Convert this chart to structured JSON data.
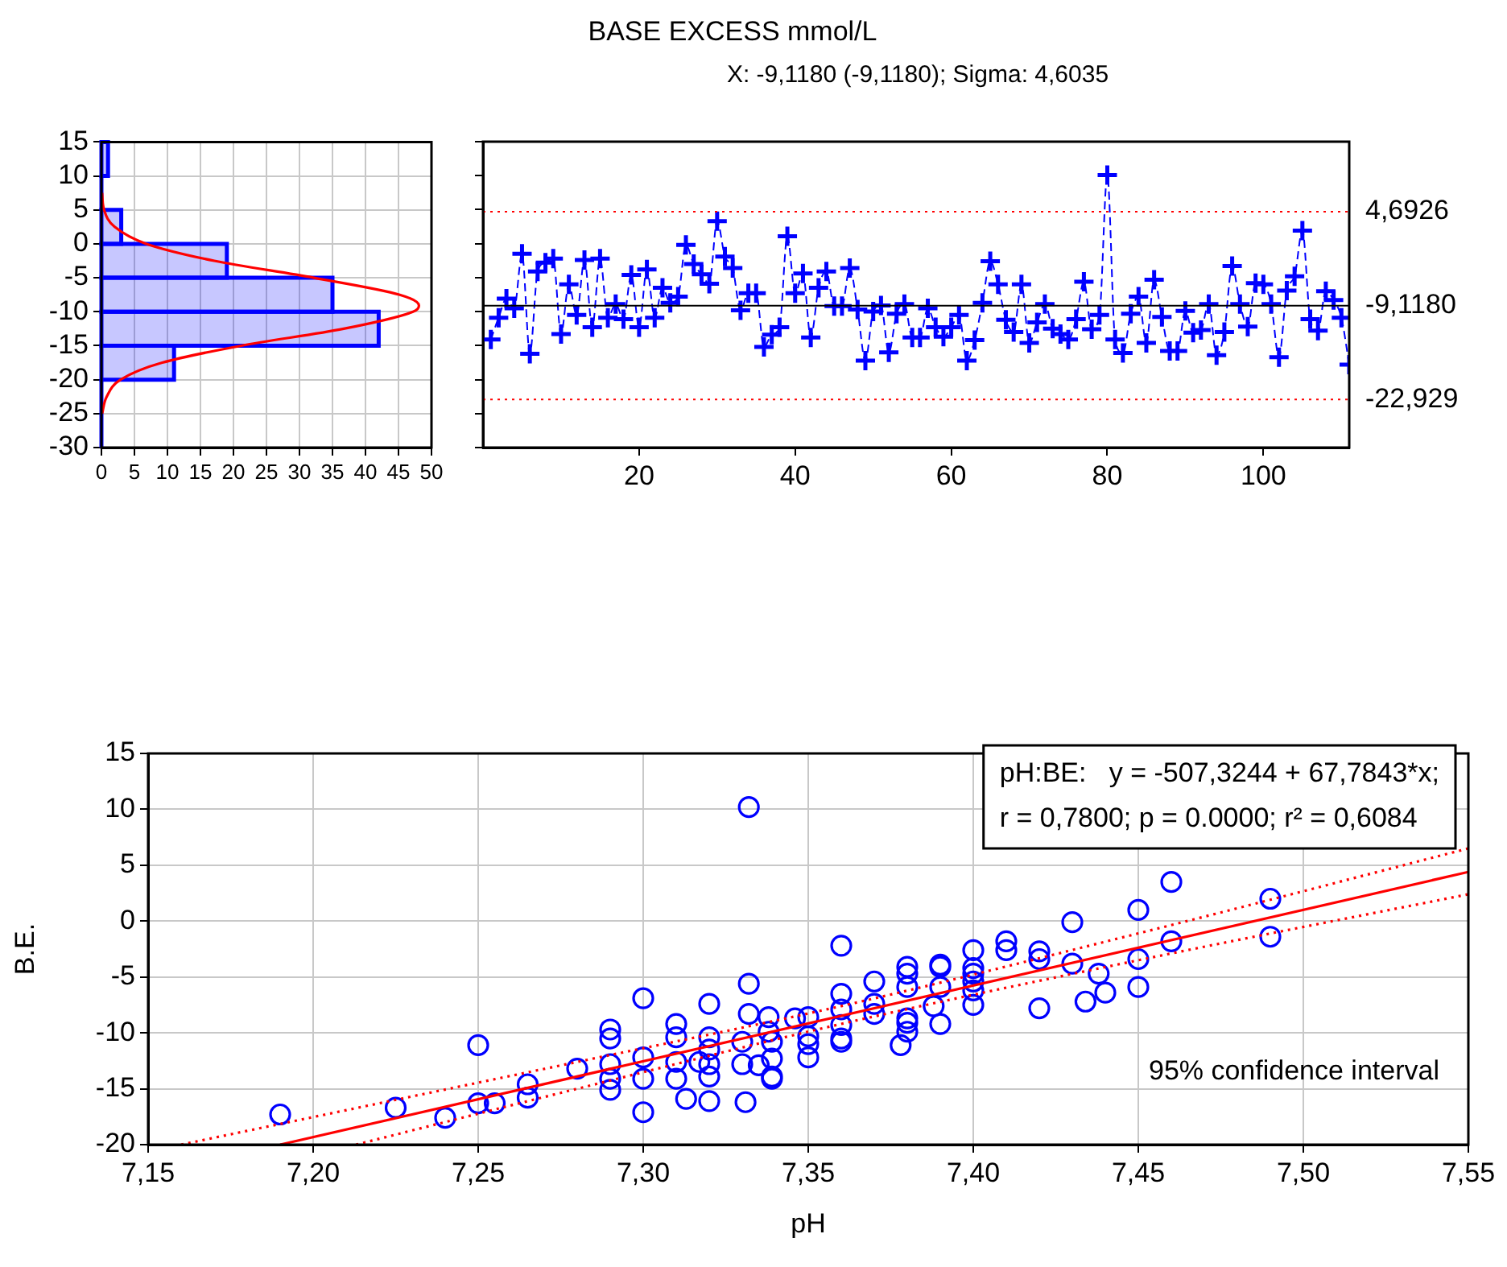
{
  "chart_data": [
    {
      "type": "histogram",
      "orientation": "horizontal",
      "bins": [
        -30,
        -25,
        -20,
        -15,
        -10,
        -5,
        0,
        5,
        10,
        15
      ],
      "values": [
        0,
        0,
        11,
        42,
        35,
        19,
        3,
        0,
        1
      ],
      "color": "#0000ff",
      "xlim": [
        0,
        50
      ],
      "xticks": [
        0,
        5,
        10,
        15,
        20,
        25,
        30,
        35,
        40,
        45,
        50
      ],
      "ylim": [
        -30,
        15
      ],
      "yticks": [
        -30,
        -25,
        -20,
        -15,
        -10,
        -5,
        0,
        5,
        10,
        15
      ],
      "grid": true,
      "series": [
        {
          "type": "line",
          "color": "#ff0000",
          "x": [
            -25,
            -22.5,
            -20,
            -17.5,
            -15,
            -12.5,
            -10,
            -9.1,
            -7.5,
            -5,
            -2.5,
            0,
            2.5,
            5,
            7.5
          ],
          "values": [
            0.1,
            0.8,
            2.9,
            9.2,
            21.2,
            36.7,
            47.2,
            48.1,
            45.2,
            32.2,
            17.1,
            6.8,
            2,
            0.4,
            0.1
          ]
        }
      ]
    },
    {
      "type": "line",
      "title": "BASE EXCESS mmol/L",
      "subtitle": "X: -9,1180 (-9,1180); Sigma: 4,6035",
      "color": "#0000ff",
      "marker": "cross",
      "line_style": "dashed",
      "xlim": [
        0,
        111
      ],
      "xticks": [
        20,
        40,
        60,
        80,
        100
      ],
      "ylim": [
        -30,
        15
      ],
      "yticks": [
        -30,
        -25,
        -20,
        -15,
        -10,
        -5,
        0,
        5,
        10,
        15
      ],
      "tick_labels": "x",
      "x": [
        1,
        2,
        3,
        4,
        5,
        6,
        7,
        8,
        9,
        10,
        11,
        12,
        13,
        14,
        15,
        16,
        17,
        18,
        19,
        20,
        21,
        22,
        23,
        24,
        25,
        26,
        27,
        28,
        29,
        30,
        31,
        32,
        33,
        34,
        35,
        36,
        37,
        38,
        39,
        40,
        41,
        42,
        43,
        44,
        45,
        46,
        47,
        48,
        49,
        50,
        51,
        52,
        53,
        54,
        55,
        56,
        57,
        58,
        59,
        60,
        61,
        62,
        63,
        64,
        65,
        66,
        67,
        68,
        69,
        70,
        71,
        72,
        73,
        74,
        75,
        76,
        77,
        78,
        79,
        80,
        81,
        82,
        83,
        84,
        85,
        86,
        87,
        88,
        89,
        90,
        91,
        92,
        93,
        94,
        95,
        96,
        97,
        98,
        99,
        100,
        101,
        102,
        103,
        104,
        105,
        106,
        107,
        108,
        109,
        110,
        111
      ],
      "values": [
        -14.1,
        -10.9,
        -8.1,
        -9.5,
        -1.5,
        -16.2,
        -4.1,
        -2.8,
        -2.2,
        -13.3,
        -6.0,
        -10.5,
        -2.4,
        -12.3,
        -2.2,
        -10.9,
        -8.9,
        -11.1,
        -4.6,
        -12.3,
        -3.8,
        -10.9,
        -6.5,
        -8.7,
        -7.8,
        -0.2,
        -3.0,
        -4.5,
        -5.9,
        3.3,
        -1.9,
        -3.6,
        -9.8,
        -7.3,
        -7.3,
        -15.2,
        -13.4,
        -12.3,
        1.1,
        -7.3,
        -4.4,
        -13.8,
        -6.5,
        -4.1,
        -9.2,
        -9.2,
        -3.6,
        -9.7,
        -17.2,
        -10.0,
        -9.1,
        -16.0,
        -10.3,
        -8.9,
        -13.8,
        -13.8,
        -9.5,
        -12.3,
        -13.7,
        -12.3,
        -10.5,
        -17.2,
        -14.2,
        -8.7,
        -2.6,
        -6.0,
        -11.2,
        -13.0,
        -6.0,
        -14.6,
        -11.6,
        -8.9,
        -12.5,
        -13.3,
        -14.1,
        -11.1,
        -5.6,
        -12.6,
        -10.5,
        10.1,
        -14.1,
        -16.1,
        -10.3,
        -7.8,
        -14.6,
        -5.3,
        -10.8,
        -15.8,
        -15.8,
        -9.9,
        -13.1,
        -12.7,
        -8.9,
        -16.4,
        -13.0,
        -3.3,
        -8.9,
        -12.2,
        -5.8,
        -6.0,
        -8.9,
        -16.7,
        -6.9,
        -4.8,
        1.9,
        -11.1,
        -12.8,
        -7.0,
        -8.3,
        -10.9,
        -17.8
      ],
      "ref_lines": [
        {
          "axis": "y",
          "value": 4.6926,
          "label": "4,6926",
          "color": "#ff0000",
          "line_style": "dotted"
        },
        {
          "axis": "y",
          "value": -9.118,
          "label": "-9,1180",
          "color": "#000000",
          "line_style": "solid"
        },
        {
          "axis": "y",
          "value": -22.929,
          "label": "-22,929",
          "color": "#ff0000",
          "line_style": "dotted"
        }
      ]
    },
    {
      "type": "scatter",
      "xlabel": "pH",
      "ylabel": "B.E.",
      "marker": "circle",
      "grid": true,
      "xlim": [
        7.15,
        7.55
      ],
      "xticks": [
        {
          "value": 7.15,
          "label": "7,15"
        },
        {
          "value": 7.2,
          "label": "7,20"
        },
        {
          "value": 7.25,
          "label": "7,25"
        },
        {
          "value": 7.3,
          "label": "7,30"
        },
        {
          "value": 7.35,
          "label": "7,35"
        },
        {
          "value": 7.4,
          "label": "7,40"
        },
        {
          "value": 7.45,
          "label": "7,45"
        },
        {
          "value": 7.5,
          "label": "7,50"
        },
        {
          "value": 7.55,
          "label": "7,55"
        }
      ],
      "ylim": [
        -20,
        15
      ],
      "yticks": [
        -20,
        -15,
        -10,
        -5,
        0,
        5,
        10,
        15
      ],
      "annotations": [
        "pH:BE:   y = -507,3244 + 67,7843*x;",
        "r = 0,7800; p = 0.0000; r² = 0,6084",
        "95% confidence interval"
      ],
      "series": [
        {
          "type": "scatter",
          "color": "#0000ff",
          "x": [
            7.19,
            7.225,
            7.24,
            7.25,
            7.25,
            7.255,
            7.265,
            7.265,
            7.28,
            7.29,
            7.29,
            7.29,
            7.29,
            7.29,
            7.3,
            7.3,
            7.3,
            7.3,
            7.31,
            7.31,
            7.31,
            7.31,
            7.313,
            7.317,
            7.32,
            7.32,
            7.32,
            7.32,
            7.32,
            7.32,
            7.33,
            7.33,
            7.331,
            7.332,
            7.332,
            7.332,
            7.335,
            7.338,
            7.338,
            7.339,
            7.339,
            7.339,
            7.339,
            7.346,
            7.35,
            7.35,
            7.35,
            7.35,
            7.36,
            7.36,
            7.36,
            7.36,
            7.36,
            7.36,
            7.37,
            7.37,
            7.37,
            7.378,
            7.38,
            7.38,
            7.38,
            7.38,
            7.38,
            7.38,
            7.388,
            7.39,
            7.39,
            7.39,
            7.39,
            7.4,
            7.4,
            7.4,
            7.4,
            7.4,
            7.4,
            7.41,
            7.41,
            7.42,
            7.42,
            7.42,
            7.43,
            7.43,
            7.434,
            7.438,
            7.44,
            7.45,
            7.45,
            7.45,
            7.46,
            7.46,
            7.49,
            7.49
          ],
          "values": [
            -17.3,
            -16.7,
            -17.6,
            -16.3,
            -11.1,
            -16.3,
            -14.6,
            -15.8,
            -13.2,
            -9.7,
            -10.5,
            -12.8,
            -14.1,
            -15.1,
            -6.9,
            -12.2,
            -14.1,
            -17.1,
            -9.2,
            -10.4,
            -12.6,
            -14.1,
            -15.9,
            -12.6,
            -7.4,
            -10.4,
            -11.5,
            -12.8,
            -13.9,
            -16.1,
            -10.8,
            -12.8,
            -16.2,
            10.2,
            -5.6,
            -8.3,
            -12.9,
            -8.6,
            -9.9,
            -10.8,
            -12.3,
            -13.9,
            -14.1,
            -8.7,
            -8.6,
            -10.3,
            -11.0,
            -12.2,
            -2.2,
            -6.5,
            -7.9,
            -9.3,
            -10.5,
            -10.8,
            -5.4,
            -7.4,
            -8.3,
            -11.1,
            -4.1,
            -4.7,
            -5.9,
            -8.7,
            -9.1,
            -9.9,
            -7.6,
            -3.9,
            -4.1,
            -5.9,
            -9.2,
            -2.6,
            -4.2,
            -4.7,
            -5.4,
            -6.2,
            -7.5,
            -1.8,
            -2.6,
            -2.7,
            -3.4,
            -7.8,
            -0.1,
            -3.8,
            -7.2,
            -4.7,
            -6.4,
            1.0,
            -3.4,
            -5.9,
            3.5,
            -1.8,
            2.0,
            -1.4
          ]
        },
        {
          "type": "line",
          "color": "#ff0000",
          "line_style": "solid",
          "marker": "none",
          "x": [
            7.19,
            7.55
          ],
          "values": [
            -20,
            4.4
          ]
        },
        {
          "type": "line",
          "color": "#ff0000",
          "line_style": "dotted",
          "marker": "none",
          "x": [
            7.16,
            7.22,
            7.28,
            7.36,
            7.45,
            7.55
          ],
          "values": [
            -20,
            -16.3,
            -12.6,
            -7.6,
            -1.1,
            6.5
          ]
        },
        {
          "type": "line",
          "color": "#ff0000",
          "line_style": "dotted",
          "marker": "none",
          "x": [
            7.213,
            7.28,
            7.36,
            7.45,
            7.55
          ],
          "values": [
            -20,
            -15,
            -9.2,
            -3.5,
            2.4
          ]
        }
      ]
    }
  ]
}
